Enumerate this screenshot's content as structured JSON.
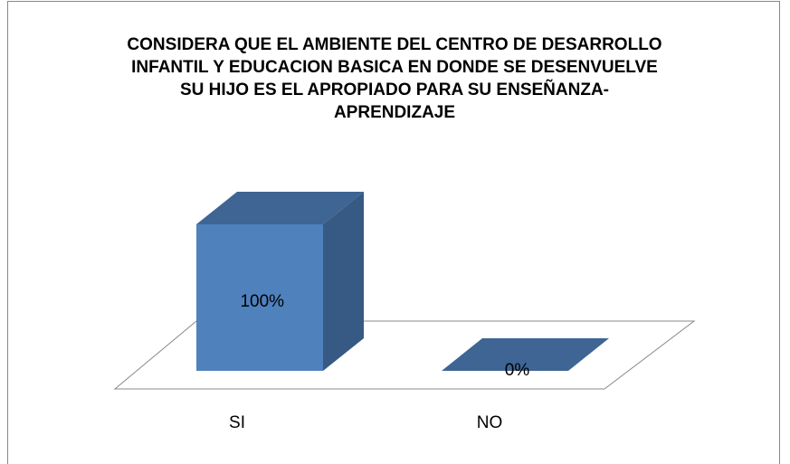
{
  "chart_data": {
    "type": "bar3d",
    "title": [
      "CONSIDERA QUE EL AMBIENTE DEL CENTRO DE DESARROLLO",
      "INFANTIL Y EDUCACION BASICA EN DONDE SE DESENVUELVE",
      "SU HIJO ES EL APROPIADO PARA SU ENSEÑANZA-",
      "APRENDIZAJE"
    ],
    "categories": [
      "SI",
      "NO"
    ],
    "values": [
      100,
      0
    ],
    "value_labels": [
      "100%",
      "0%"
    ],
    "color": "#4f81bd"
  }
}
